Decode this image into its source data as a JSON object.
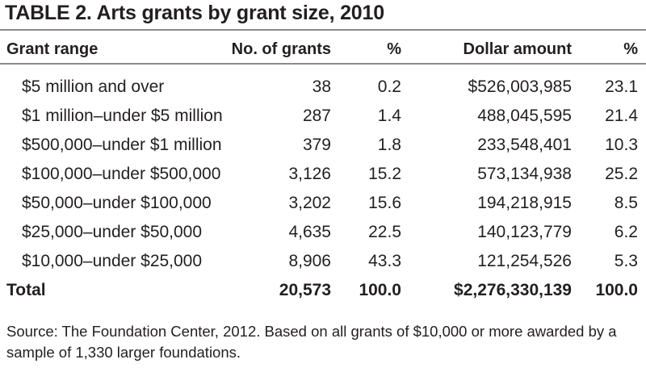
{
  "title": "TABLE 2. Arts grants by grant size, 2010",
  "headers": [
    "Grant range",
    "No. of grants",
    "%",
    "Dollar amount",
    "%"
  ],
  "rows": [
    [
      "$5 million and over",
      "38",
      "0.2",
      "$526,003,985",
      "23.1"
    ],
    [
      "$1 million–under $5 million",
      "287",
      "1.4",
      "488,045,595",
      "21.4"
    ],
    [
      "$500,000–under $1 million",
      "379",
      "1.8",
      "233,548,401",
      "10.3"
    ],
    [
      "$100,000–under $500,000",
      "3,126",
      "15.2",
      "573,134,938",
      "25.2"
    ],
    [
      "$50,000–under $100,000",
      "3,202",
      "15.6",
      "194,218,915",
      "8.5"
    ],
    [
      "$25,000–under $50,000",
      "4,635",
      "22.5",
      "140,123,779",
      "6.2"
    ],
    [
      "$10,000–under $25,000",
      "8,906",
      "43.3",
      "121,254,526",
      "5.3"
    ]
  ],
  "total": [
    "Total",
    "20,573",
    "100.0",
    "$2,276,330,139",
    "100.0"
  ],
  "source": "Source: The Foundation Center, 2012. Based on all grants of $10,000 or more awarded by a sample of 1,330 larger foundations."
}
